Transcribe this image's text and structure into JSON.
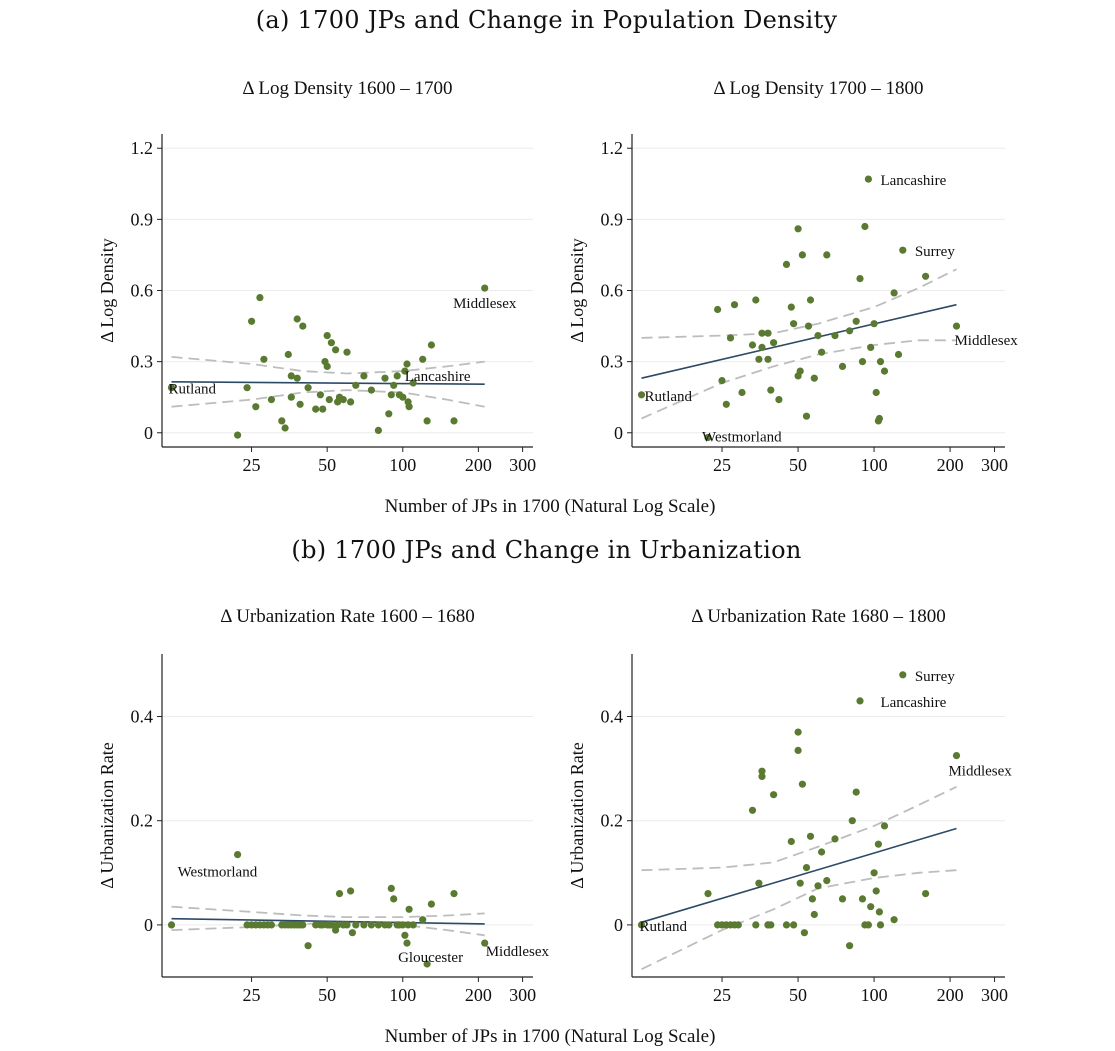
{
  "panel_a": {
    "title": "(a) 1700 JPs and Change in Population Density",
    "xlabel": "Number of JPs in 1700 (Natural Log Scale)"
  },
  "panel_b": {
    "title": "(b) 1700 JPs and Change in Urbanization",
    "xlabel": "Number of JPs in 1700 (Natural Log Scale)"
  },
  "colors": {
    "point": "#5a7a32",
    "fit": "#2b4a66",
    "ci": "#bdbdbd",
    "axis": "#222222",
    "grid": "#ececec"
  },
  "chart_data": [
    {
      "id": "c1",
      "type": "scatter",
      "title": "Δ Log Density 1600 – 1700",
      "ylabel": "Δ Log Density",
      "xscale": "log",
      "xlim": [
        11,
        330
      ],
      "ylim": [
        -0.06,
        1.26
      ],
      "xticks": [
        25,
        50,
        100,
        200,
        300
      ],
      "yticks": [
        0,
        0.3,
        0.6,
        0.9,
        1.2
      ],
      "ytick_labels": [
        "0",
        "0.3",
        "0.6",
        "0.9",
        "1.2"
      ],
      "points": [
        [
          12,
          0.19
        ],
        [
          22,
          -0.01
        ],
        [
          24,
          0.19
        ],
        [
          25,
          0.47
        ],
        [
          26,
          0.11
        ],
        [
          27,
          0.57
        ],
        [
          28,
          0.31
        ],
        [
          30,
          0.14
        ],
        [
          33,
          0.05
        ],
        [
          34,
          0.02
        ],
        [
          35,
          0.33
        ],
        [
          36,
          0.24
        ],
        [
          36,
          0.15
        ],
        [
          38,
          0.23
        ],
        [
          38,
          0.48
        ],
        [
          39,
          0.12
        ],
        [
          40,
          0.45
        ],
        [
          42,
          0.19
        ],
        [
          45,
          0.1
        ],
        [
          47,
          0.16
        ],
        [
          48,
          0.1
        ],
        [
          49,
          0.3
        ],
        [
          50,
          0.28
        ],
        [
          50,
          0.41
        ],
        [
          51,
          0.14
        ],
        [
          52,
          0.38
        ],
        [
          54,
          0.35
        ],
        [
          55,
          0.13
        ],
        [
          56,
          0.15
        ],
        [
          58,
          0.14
        ],
        [
          60,
          0.34
        ],
        [
          62,
          0.13
        ],
        [
          65,
          0.2
        ],
        [
          70,
          0.24
        ],
        [
          75,
          0.18
        ],
        [
          80,
          0.01
        ],
        [
          85,
          0.23
        ],
        [
          88,
          0.08
        ],
        [
          90,
          0.16
        ],
        [
          92,
          0.2
        ],
        [
          95,
          0.24
        ],
        [
          97,
          0.16
        ],
        [
          100,
          0.15
        ],
        [
          102,
          0.26
        ],
        [
          104,
          0.29
        ],
        [
          105,
          0.13
        ],
        [
          106,
          0.11
        ],
        [
          110,
          0.21
        ],
        [
          120,
          0.31
        ],
        [
          125,
          0.05
        ],
        [
          130,
          0.37
        ],
        [
          160,
          0.05
        ],
        [
          212,
          0.61
        ]
      ],
      "fit": [
        [
          12,
          0.215
        ],
        [
          212,
          0.205
        ]
      ],
      "ci_upper": [
        [
          12,
          0.32
        ],
        [
          25,
          0.29
        ],
        [
          40,
          0.26
        ],
        [
          60,
          0.25
        ],
        [
          100,
          0.26
        ],
        [
          150,
          0.28
        ],
        [
          212,
          0.3
        ]
      ],
      "ci_lower": [
        [
          12,
          0.11
        ],
        [
          25,
          0.14
        ],
        [
          40,
          0.17
        ],
        [
          60,
          0.18
        ],
        [
          100,
          0.17
        ],
        [
          150,
          0.14
        ],
        [
          212,
          0.11
        ]
      ],
      "annotations": [
        {
          "text": "Rutland",
          "x": 12,
          "y": 0.19,
          "anchor": "start",
          "dx": -3,
          "dy": 6
        },
        {
          "text": "Lancashire",
          "x": 100,
          "y": 0.24,
          "anchor": "start",
          "dx": 2,
          "dy": 5
        },
        {
          "text": "Middlesex",
          "x": 212,
          "y": 0.61,
          "anchor": "middle",
          "dx": 0,
          "dy": 20
        }
      ]
    },
    {
      "id": "c2",
      "type": "scatter",
      "title": "Δ Log Density 1700 – 1800",
      "ylabel": "Δ Log Density",
      "xscale": "log",
      "xlim": [
        11,
        330
      ],
      "ylim": [
        -0.06,
        1.26
      ],
      "xticks": [
        25,
        50,
        100,
        200,
        300
      ],
      "yticks": [
        0,
        0.3,
        0.6,
        0.9,
        1.2
      ],
      "ytick_labels": [
        "0",
        "0.3",
        "0.6",
        "0.9",
        "1.2"
      ],
      "points": [
        [
          12,
          0.16
        ],
        [
          22,
          -0.02
        ],
        [
          24,
          0.52
        ],
        [
          25,
          0.22
        ],
        [
          26,
          0.12
        ],
        [
          27,
          0.4
        ],
        [
          28,
          0.54
        ],
        [
          30,
          0.17
        ],
        [
          33,
          0.37
        ],
        [
          34,
          0.56
        ],
        [
          35,
          0.31
        ],
        [
          36,
          0.42
        ],
        [
          36,
          0.36
        ],
        [
          38,
          0.42
        ],
        [
          38,
          0.31
        ],
        [
          39,
          0.18
        ],
        [
          40,
          0.38
        ],
        [
          42,
          0.14
        ],
        [
          45,
          0.71
        ],
        [
          47,
          0.53
        ],
        [
          48,
          0.46
        ],
        [
          50,
          0.86
        ],
        [
          50,
          0.24
        ],
        [
          51,
          0.26
        ],
        [
          52,
          0.75
        ],
        [
          54,
          0.07
        ],
        [
          55,
          0.45
        ],
        [
          56,
          0.56
        ],
        [
          58,
          0.23
        ],
        [
          60,
          0.41
        ],
        [
          62,
          0.34
        ],
        [
          65,
          0.75
        ],
        [
          70,
          0.41
        ],
        [
          75,
          0.28
        ],
        [
          80,
          0.43
        ],
        [
          85,
          0.47
        ],
        [
          88,
          0.65
        ],
        [
          90,
          0.3
        ],
        [
          92,
          0.87
        ],
        [
          95,
          1.07
        ],
        [
          97,
          0.36
        ],
        [
          100,
          0.46
        ],
        [
          102,
          0.17
        ],
        [
          104,
          0.05
        ],
        [
          105,
          0.06
        ],
        [
          106,
          0.3
        ],
        [
          110,
          0.26
        ],
        [
          120,
          0.59
        ],
        [
          125,
          0.33
        ],
        [
          130,
          0.77
        ],
        [
          160,
          0.66
        ],
        [
          212,
          0.45
        ]
      ],
      "fit": [
        [
          12,
          0.23
        ],
        [
          212,
          0.54
        ]
      ],
      "ci_upper": [
        [
          12,
          0.4
        ],
        [
          25,
          0.41
        ],
        [
          40,
          0.42
        ],
        [
          60,
          0.46
        ],
        [
          100,
          0.53
        ],
        [
          150,
          0.61
        ],
        [
          212,
          0.69
        ]
      ],
      "ci_lower": [
        [
          12,
          0.06
        ],
        [
          25,
          0.21
        ],
        [
          40,
          0.28
        ],
        [
          60,
          0.33
        ],
        [
          100,
          0.37
        ],
        [
          150,
          0.39
        ],
        [
          212,
          0.39
        ]
      ],
      "annotations": [
        {
          "text": "Lancashire",
          "x": 95,
          "y": 1.07,
          "anchor": "start",
          "dx": 12,
          "dy": 6
        },
        {
          "text": "Surrey",
          "x": 130,
          "y": 0.77,
          "anchor": "start",
          "dx": 12,
          "dy": 6
        },
        {
          "text": "Middlesex",
          "x": 212,
          "y": 0.45,
          "anchor": "start",
          "dx": -2,
          "dy": 19
        },
        {
          "text": "Rutland",
          "x": 12,
          "y": 0.16,
          "anchor": "start",
          "dx": 3,
          "dy": 6
        },
        {
          "text": "Westmorland",
          "x": 22,
          "y": -0.02,
          "anchor": "start",
          "dx": -6,
          "dy": 4
        }
      ]
    },
    {
      "id": "c3",
      "type": "scatter",
      "title": "Δ Urbanization Rate 1600 – 1680",
      "ylabel": "Δ Urbanization Rate",
      "xscale": "log",
      "xlim": [
        11,
        330
      ],
      "ylim": [
        -0.1,
        0.52
      ],
      "xticks": [
        25,
        50,
        100,
        200,
        300
      ],
      "yticks": [
        0,
        0.2,
        0.4
      ],
      "ytick_labels": [
        "0",
        "0.2",
        "0.4"
      ],
      "points": [
        [
          12,
          0.0
        ],
        [
          22,
          0.135
        ],
        [
          24,
          0.0
        ],
        [
          25,
          0.0
        ],
        [
          26,
          0.0
        ],
        [
          27,
          0.0
        ],
        [
          28,
          0.0
        ],
        [
          29,
          0.0
        ],
        [
          30,
          0.0
        ],
        [
          33,
          0.0
        ],
        [
          34,
          0.0
        ],
        [
          35,
          0.0
        ],
        [
          36,
          0.0
        ],
        [
          37,
          0.0
        ],
        [
          38,
          0.0
        ],
        [
          39,
          0.0
        ],
        [
          40,
          0.0
        ],
        [
          42,
          -0.04
        ],
        [
          45,
          0.0
        ],
        [
          47,
          0.0
        ],
        [
          48,
          0.0
        ],
        [
          50,
          0.0
        ],
        [
          51,
          0.0
        ],
        [
          52,
          0.0
        ],
        [
          54,
          -0.01
        ],
        [
          55,
          0.0
        ],
        [
          56,
          0.06
        ],
        [
          58,
          0.0
        ],
        [
          60,
          0.0
        ],
        [
          62,
          0.065
        ],
        [
          63,
          -0.015
        ],
        [
          65,
          0.0
        ],
        [
          70,
          0.0
        ],
        [
          75,
          0.0
        ],
        [
          80,
          0.0
        ],
        [
          85,
          0.0
        ],
        [
          88,
          0.0
        ],
        [
          90,
          0.07
        ],
        [
          92,
          0.05
        ],
        [
          95,
          0.0
        ],
        [
          97,
          0.0
        ],
        [
          100,
          0.0
        ],
        [
          102,
          -0.02
        ],
        [
          104,
          -0.035
        ],
        [
          105,
          0.0
        ],
        [
          106,
          0.03
        ],
        [
          110,
          0.0
        ],
        [
          120,
          0.01
        ],
        [
          125,
          -0.075
        ],
        [
          130,
          0.04
        ],
        [
          160,
          0.06
        ],
        [
          212,
          -0.035
        ]
      ],
      "fit": [
        [
          12,
          0.012
        ],
        [
          212,
          0.002
        ]
      ],
      "ci_upper": [
        [
          12,
          0.035
        ],
        [
          25,
          0.025
        ],
        [
          40,
          0.018
        ],
        [
          60,
          0.015
        ],
        [
          100,
          0.015
        ],
        [
          150,
          0.018
        ],
        [
          212,
          0.022
        ]
      ],
      "ci_lower": [
        [
          12,
          -0.01
        ],
        [
          25,
          -0.004
        ],
        [
          40,
          0.002
        ],
        [
          60,
          0.005
        ],
        [
          100,
          0.0
        ],
        [
          150,
          -0.01
        ],
        [
          212,
          -0.02
        ]
      ],
      "annotations": [
        {
          "text": "Westmorland",
          "x": 22,
          "y": 0.135,
          "anchor": "start",
          "dx": -60,
          "dy": 22
        },
        {
          "text": "Gloucester",
          "x": 125,
          "y": -0.075,
          "anchor": "start",
          "dx": -29,
          "dy": -2
        },
        {
          "text": "Middlesex",
          "x": 212,
          "y": -0.035,
          "anchor": "start",
          "dx": 1,
          "dy": 13
        }
      ]
    },
    {
      "id": "c4",
      "type": "scatter",
      "title": "Δ Urbanization Rate 1680 – 1800",
      "ylabel": "Δ Urbanization Rate",
      "xscale": "log",
      "xlim": [
        11,
        330
      ],
      "ylim": [
        -0.1,
        0.52
      ],
      "xticks": [
        25,
        50,
        100,
        200,
        300
      ],
      "yticks": [
        0,
        0.2,
        0.4
      ],
      "ytick_labels": [
        "0",
        "0.2",
        "0.4"
      ],
      "points": [
        [
          12,
          0.0
        ],
        [
          22,
          0.06
        ],
        [
          24,
          0.0
        ],
        [
          25,
          0.0
        ],
        [
          26,
          0.0
        ],
        [
          27,
          0.0
        ],
        [
          28,
          0.0
        ],
        [
          29,
          0.0
        ],
        [
          33,
          0.22
        ],
        [
          34,
          0.0
        ],
        [
          35,
          0.08
        ],
        [
          36,
          0.295
        ],
        [
          36,
          0.285
        ],
        [
          38,
          0.0
        ],
        [
          38,
          0.0
        ],
        [
          39,
          0.0
        ],
        [
          40,
          0.25
        ],
        [
          45,
          0.0
        ],
        [
          47,
          0.16
        ],
        [
          48,
          0.0
        ],
        [
          50,
          0.37
        ],
        [
          50,
          0.335
        ],
        [
          51,
          0.08
        ],
        [
          52,
          0.27
        ],
        [
          53,
          -0.015
        ],
        [
          54,
          0.11
        ],
        [
          56,
          0.17
        ],
        [
          57,
          0.05
        ],
        [
          58,
          0.02
        ],
        [
          60,
          0.075
        ],
        [
          62,
          0.14
        ],
        [
          65,
          0.085
        ],
        [
          70,
          0.165
        ],
        [
          75,
          0.05
        ],
        [
          80,
          -0.04
        ],
        [
          82,
          0.2
        ],
        [
          85,
          0.255
        ],
        [
          88,
          0.43
        ],
        [
          90,
          0.05
        ],
        [
          92,
          0.0
        ],
        [
          95,
          0.0
        ],
        [
          97,
          0.035
        ],
        [
          100,
          0.1
        ],
        [
          102,
          0.065
        ],
        [
          104,
          0.155
        ],
        [
          105,
          0.025
        ],
        [
          106,
          0.0
        ],
        [
          110,
          0.19
        ],
        [
          120,
          0.01
        ],
        [
          130,
          0.48
        ],
        [
          160,
          0.06
        ],
        [
          212,
          0.325
        ]
      ],
      "fit": [
        [
          12,
          0.005
        ],
        [
          212,
          0.185
        ]
      ],
      "ci_upper": [
        [
          12,
          0.105
        ],
        [
          25,
          0.11
        ],
        [
          40,
          0.12
        ],
        [
          60,
          0.15
        ],
        [
          100,
          0.19
        ],
        [
          150,
          0.23
        ],
        [
          212,
          0.265
        ]
      ],
      "ci_lower": [
        [
          12,
          -0.085
        ],
        [
          25,
          -0.01
        ],
        [
          40,
          0.03
        ],
        [
          60,
          0.07
        ],
        [
          100,
          0.09
        ],
        [
          150,
          0.1
        ],
        [
          212,
          0.105
        ]
      ],
      "annotations": [
        {
          "text": "Surrey",
          "x": 130,
          "y": 0.48,
          "anchor": "start",
          "dx": 12,
          "dy": 6
        },
        {
          "text": "Lancashire",
          "x": 95,
          "y": 0.43,
          "anchor": "start",
          "dx": 12,
          "dy": 6
        },
        {
          "text": "Middlesex",
          "x": 212,
          "y": 0.325,
          "anchor": "start",
          "dx": -8,
          "dy": 20
        },
        {
          "text": "Rutland",
          "x": 12,
          "y": 0.0,
          "anchor": "start",
          "dx": -2,
          "dy": 6
        }
      ]
    }
  ]
}
